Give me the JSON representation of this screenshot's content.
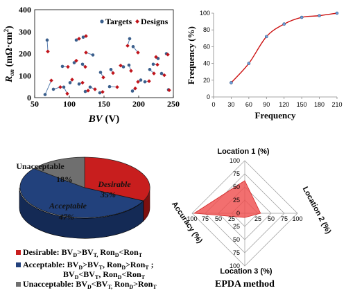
{
  "chart_data": [
    {
      "type": "scatter",
      "title": "",
      "xlabel": "BV (V)",
      "ylabel": "Ron (mΩ·cm²)",
      "xlim": [
        50,
        250
      ],
      "ylim": [
        0,
        400
      ],
      "xticks": [
        50,
        100,
        150,
        200,
        250
      ],
      "yticks": [
        0,
        100,
        200,
        300,
        400
      ],
      "legend_position": "top-right",
      "series": [
        {
          "name": "Targets",
          "color": "#3b5f8c",
          "marker": "circle"
        },
        {
          "name": "Designs",
          "color": "#c0141b",
          "marker": "diamond"
        }
      ],
      "pairs": [
        {
          "target": [
            68,
            262
          ],
          "design": [
            69,
            210
          ]
        },
        {
          "target": [
            65,
            14
          ],
          "design": [
            74,
            78
          ]
        },
        {
          "target": [
            77,
            38
          ],
          "design": [
            87,
            48
          ]
        },
        {
          "target": [
            92,
            48
          ],
          "design": [
            97,
            18
          ]
        },
        {
          "target": [
            90,
            142
          ],
          "design": [
            98,
            140
          ]
        },
        {
          "target": [
            101,
            68
          ],
          "design": [
            104,
            82
          ]
        },
        {
          "target": [
            107,
            159
          ],
          "design": [
            110,
            168
          ]
        },
        {
          "target": [
            110,
            262
          ],
          "design": [
            114,
            268
          ]
        },
        {
          "target": [
            114,
            62
          ],
          "design": [
            119,
            68
          ]
        },
        {
          "target": [
            120,
            275
          ],
          "design": [
            124,
            280
          ]
        },
        {
          "target": [
            119,
            152
          ],
          "design": [
            123,
            140
          ]
        },
        {
          "target": [
            134,
            194
          ],
          "design": [
            124,
            205
          ]
        },
        {
          "target": [
            123,
            28
          ],
          "design": [
            127,
            32
          ]
        },
        {
          "target": [
            130,
            48
          ],
          "design": [
            137,
            38
          ]
        },
        {
          "target": [
            144,
            22
          ],
          "design": [
            148,
            26
          ]
        },
        {
          "target": [
            145,
            115
          ],
          "design": [
            149,
            92
          ]
        },
        {
          "target": [
            160,
            128
          ],
          "design": [
            163,
            112
          ]
        },
        {
          "target": [
            158,
            50
          ],
          "design": [
            169,
            48
          ]
        },
        {
          "target": [
            178,
            140
          ],
          "design": [
            174,
            146
          ]
        },
        {
          "target": [
            187,
            268
          ],
          "design": [
            184,
            236
          ]
        },
        {
          "target": [
            186,
            148
          ],
          "design": [
            189,
            122
          ]
        },
        {
          "target": [
            192,
            232
          ],
          "design": [
            199,
            205
          ]
        },
        {
          "target": [
            191,
            30
          ],
          "design": [
            195,
            42
          ]
        },
        {
          "target": [
            203,
            80
          ],
          "design": [
            199,
            72
          ]
        },
        {
          "target": [
            209,
            72
          ],
          "design": [
            215,
            75
          ]
        },
        {
          "target": [
            216,
            128
          ],
          "design": [
            222,
            110
          ]
        },
        {
          "target": [
            221,
            152
          ],
          "design": [
            227,
            150
          ]
        },
        {
          "target": [
            228,
            178
          ],
          "design": [
            225,
            185
          ]
        },
        {
          "target": [
            233,
            110
          ],
          "design": [
            237,
            102
          ]
        },
        {
          "target": [
            240,
            200
          ],
          "design": [
            242,
            196
          ]
        },
        {
          "target": [
            243,
            36
          ],
          "design": [
            244,
            34
          ]
        }
      ]
    },
    {
      "type": "line",
      "title": "",
      "xlabel": "Frequency",
      "ylabel": "Frequency (%)",
      "xlim": [
        0,
        210
      ],
      "ylim": [
        0,
        100
      ],
      "xticks": [
        0,
        30,
        60,
        90,
        120,
        150,
        180,
        210
      ],
      "yticks": [
        0,
        20,
        40,
        60,
        80,
        100
      ],
      "series": [
        {
          "name": "",
          "color": "#cc1111",
          "x": [
            30,
            60,
            90,
            120,
            150,
            180,
            210
          ],
          "y": [
            17,
            40,
            72,
            87,
            95,
            97,
            100
          ]
        }
      ]
    },
    {
      "type": "pie",
      "title": "",
      "slices": [
        {
          "label": "Desirable",
          "value": 35,
          "display": "35%",
          "color": "#c81e1e"
        },
        {
          "label": "Acceptable",
          "value": 47,
          "display": "47%",
          "color": "#22417c"
        },
        {
          "label": "Unacceptable",
          "value": 18,
          "display": "18%",
          "color": "#6f6f6f"
        }
      ],
      "legend": [
        {
          "line1": "Desirable: BVD>BVT, RonD<RonT",
          "color": "#c81e1e"
        },
        {
          "line1": "Acceptable: BVD>BVT, RonD>RonT ;",
          "line2": "BVD<BVT, RonD<RonT",
          "color": "#22417c"
        },
        {
          "line1": "Unacceptable: BVD<BVT, RonD>RonT",
          "color": "#6f6f6f"
        }
      ]
    },
    {
      "type": "radar",
      "title": "EPDA method",
      "axes": [
        "Location 1 (%)",
        "Location 2 (%)",
        "Location 3 (%)",
        "Accuracy (%)"
      ],
      "range": [
        0,
        100
      ],
      "ticks": [
        0,
        25,
        50,
        75,
        100
      ],
      "values": [
        62,
        30,
        8,
        96
      ],
      "color": "#ef4b4b"
    }
  ],
  "texts": {
    "ron_label_main": "R",
    "ron_label_sub": "on",
    "ron_label_unit": " (mΩ·cm",
    "ron_label_sup": "2",
    "ron_label_close": ")",
    "bv_label_main": "BV",
    "bv_label_unit": " (V)",
    "legend_targets": "Targets",
    "legend_designs": "Designs",
    "freq_ylabel": "Frequency (%)",
    "freq_xlabel": "Frequency",
    "pie_desirable": "Desirable",
    "pie_desirable_pct": "35%",
    "pie_acceptable": "Acceptable",
    "pie_acceptable_pct": "47%",
    "pie_unacceptable": "Unacceptable",
    "pie_unacceptable_pct": "18%",
    "radar_loc1": "Location 1 (%)",
    "radar_loc2": "Location 2 (%)",
    "radar_loc3": "Location 3 (%)",
    "radar_acc": "Accuracy (%)",
    "radar_title": "EPDA method"
  }
}
